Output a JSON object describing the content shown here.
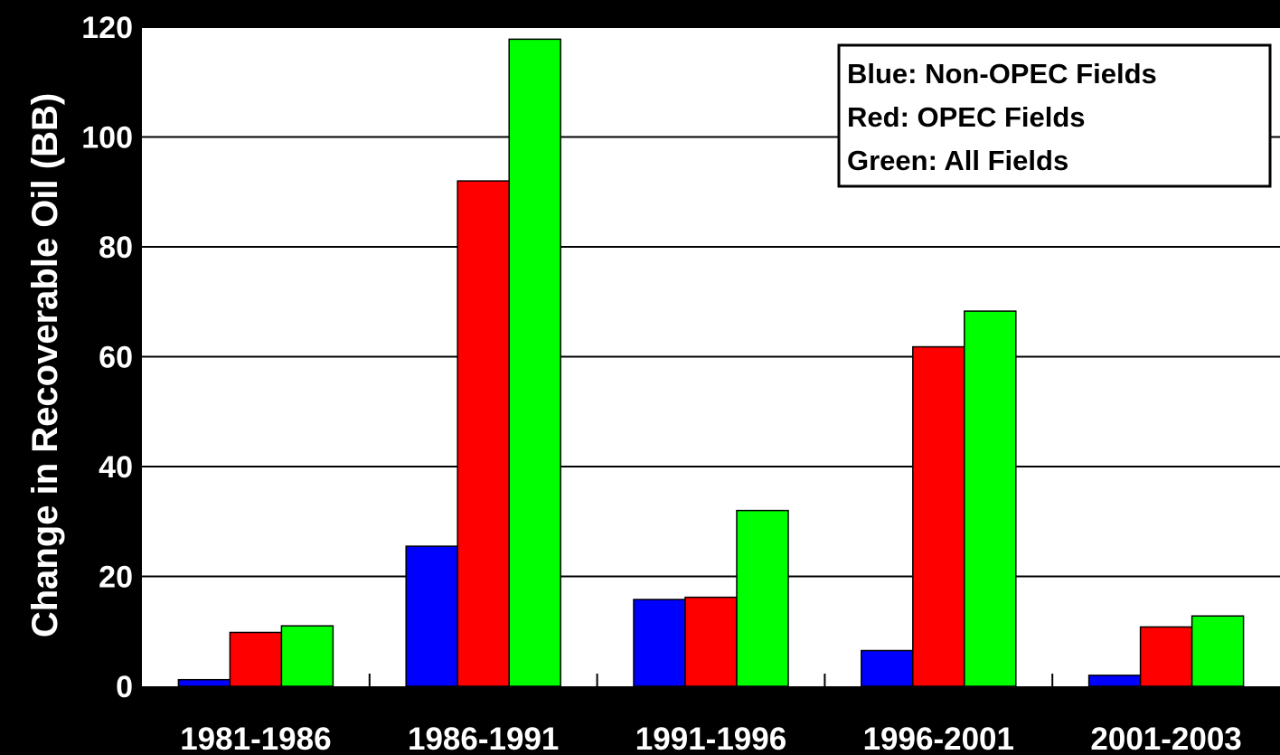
{
  "chart_data": {
    "type": "bar",
    "title": "",
    "xlabel": "",
    "ylabel": "Change in Recoverable Oil (BB)",
    "ylim": [
      0,
      120
    ],
    "yticks": [
      0,
      20,
      40,
      60,
      80,
      100,
      120
    ],
    "grid": true,
    "categories": [
      "1981-1986",
      "1986-1991",
      "1991-1996",
      "1996-2001",
      "2001-2003"
    ],
    "series": [
      {
        "name": "Non-OPEC Fields",
        "color": "#0000ff",
        "values": [
          1.2,
          25.5,
          15.8,
          6.5,
          2.0
        ]
      },
      {
        "name": "OPEC Fields",
        "color": "#ff0000",
        "values": [
          9.8,
          92,
          16.2,
          61.8,
          10.8
        ]
      },
      {
        "name": "All Fields",
        "color": "#00ff00",
        "values": [
          11,
          117.8,
          32,
          68.3,
          12.8
        ]
      }
    ],
    "legend": {
      "position": "top-right",
      "entries": [
        "Blue:  Non-OPEC Fields",
        "Red:  OPEC Fields",
        "Green:  All Fields"
      ]
    }
  }
}
